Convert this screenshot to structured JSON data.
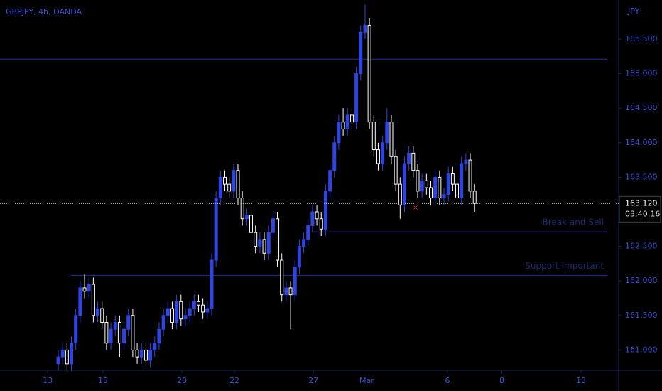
{
  "chart_data": {
    "type": "candlestick",
    "title": "GBPJPY, 4h, OANDA",
    "currency": "JPY",
    "up_color": "#2f45e0",
    "down_color": "#ffffff",
    "open": [
      160.8,
      160.9,
      161.0,
      160.8,
      161.1,
      161.5,
      161.9,
      161.85,
      161.95,
      161.5,
      161.6,
      161.4,
      161.1,
      161.3,
      161.4,
      161.1,
      161.3,
      161.5,
      161.0,
      160.9,
      161.0,
      160.85,
      161.0,
      161.1,
      161.3,
      161.5,
      161.6,
      161.4,
      161.7,
      161.45,
      161.5,
      161.6,
      161.7,
      161.65,
      161.55,
      161.6,
      162.3,
      163.2,
      163.5,
      163.4,
      163.3,
      163.6,
      163.2,
      162.9,
      162.95,
      162.7,
      162.5,
      162.6,
      162.4,
      162.7,
      162.9,
      162.3,
      161.8,
      161.9,
      161.8,
      162.2,
      162.5,
      162.6,
      162.8,
      163.0,
      162.9,
      162.75,
      163.3,
      163.6,
      164.0,
      164.3,
      164.2,
      164.4,
      164.3,
      165.0,
      165.6,
      165.7,
      164.3,
      163.9,
      163.7,
      164.0,
      164.3,
      163.8,
      163.4,
      163.1,
      163.7,
      163.85,
      163.6,
      163.3,
      163.45,
      163.35,
      163.2,
      163.5,
      163.2,
      163.25,
      163.55,
      163.4,
      163.2,
      163.7,
      163.75,
      163.3
    ],
    "high": [
      161.0,
      161.1,
      161.1,
      161.2,
      161.6,
      162.0,
      162.1,
      162.05,
      162.05,
      161.7,
      161.7,
      161.5,
      161.4,
      161.5,
      161.5,
      161.4,
      161.6,
      161.6,
      161.1,
      161.1,
      161.1,
      161.1,
      161.2,
      161.4,
      161.6,
      161.7,
      161.7,
      161.8,
      161.8,
      161.6,
      161.7,
      161.8,
      161.8,
      161.75,
      161.7,
      162.4,
      163.3,
      163.6,
      163.6,
      163.5,
      163.7,
      163.7,
      163.3,
      163.05,
      163.05,
      162.8,
      162.7,
      162.7,
      162.8,
      163.0,
      163.0,
      162.4,
      162.0,
      162.0,
      162.3,
      162.6,
      162.7,
      162.9,
      163.1,
      163.1,
      163.0,
      163.4,
      163.7,
      164.1,
      164.4,
      164.5,
      164.5,
      164.5,
      165.1,
      165.7,
      166.0,
      165.8,
      164.4,
      164.0,
      164.1,
      164.5,
      164.4,
      163.9,
      163.5,
      163.8,
      163.95,
      163.95,
      163.7,
      163.55,
      163.55,
      163.45,
      163.6,
      163.6,
      163.35,
      163.65,
      163.65,
      163.5,
      163.8,
      163.85,
      163.85,
      163.4
    ],
    "low": [
      160.7,
      160.8,
      160.7,
      160.7,
      161.0,
      161.4,
      161.75,
      161.75,
      161.4,
      161.4,
      161.3,
      161.0,
      161.0,
      161.2,
      160.9,
      161.0,
      161.2,
      160.9,
      160.8,
      160.8,
      160.75,
      160.75,
      160.9,
      161.0,
      161.2,
      161.4,
      161.3,
      161.3,
      161.35,
      161.35,
      161.4,
      161.5,
      161.55,
      161.45,
      161.45,
      161.5,
      162.2,
      163.1,
      163.3,
      163.2,
      163.2,
      163.1,
      162.8,
      162.8,
      162.6,
      162.4,
      162.4,
      162.3,
      162.3,
      162.6,
      162.2,
      161.7,
      161.7,
      161.3,
      161.7,
      162.1,
      162.4,
      162.5,
      162.7,
      162.8,
      162.65,
      162.65,
      163.2,
      163.5,
      163.9,
      164.1,
      164.1,
      164.2,
      164.2,
      164.9,
      165.5,
      164.2,
      163.8,
      163.6,
      163.6,
      163.9,
      163.7,
      163.3,
      162.9,
      163.0,
      163.6,
      163.5,
      163.2,
      163.2,
      163.25,
      163.1,
      163.1,
      163.1,
      163.1,
      163.15,
      163.3,
      163.1,
      163.1,
      163.6,
      163.2,
      163.0
    ],
    "close": [
      160.9,
      161.0,
      160.8,
      161.1,
      161.5,
      161.9,
      161.85,
      161.95,
      161.5,
      161.6,
      161.4,
      161.1,
      161.3,
      161.4,
      161.1,
      161.3,
      161.5,
      161.0,
      160.9,
      161.0,
      160.85,
      161.0,
      161.1,
      161.3,
      161.5,
      161.6,
      161.4,
      161.7,
      161.45,
      161.5,
      161.6,
      161.7,
      161.65,
      161.55,
      161.6,
      162.3,
      163.2,
      163.5,
      163.4,
      163.3,
      163.6,
      163.2,
      162.9,
      162.95,
      162.7,
      162.5,
      162.6,
      162.4,
      162.7,
      162.9,
      162.3,
      161.8,
      161.9,
      161.8,
      162.2,
      162.5,
      162.6,
      162.8,
      163.0,
      162.9,
      162.75,
      163.3,
      163.6,
      164.0,
      164.3,
      164.2,
      164.4,
      164.3,
      165.0,
      165.6,
      165.7,
      164.3,
      163.9,
      163.7,
      164.0,
      164.3,
      163.8,
      163.4,
      163.1,
      163.7,
      163.85,
      163.6,
      163.3,
      163.45,
      163.35,
      163.2,
      163.5,
      163.2,
      163.25,
      163.55,
      163.4,
      163.2,
      163.7,
      163.75,
      163.3,
      163.12
    ],
    "xlim": [
      -13.29,
      127.7
    ],
    "xticks": [
      {
        "value": -2.4,
        "label": "13"
      },
      {
        "value": 10.2,
        "label": "15"
      },
      {
        "value": 28.2,
        "label": "20"
      },
      {
        "value": 40.2,
        "label": "22"
      },
      {
        "value": 58.2,
        "label": "27"
      },
      {
        "value": 70.4,
        "label": "Mar"
      },
      {
        "value": 88.8,
        "label": "6"
      },
      {
        "value": 101.2,
        "label": "8"
      },
      {
        "value": 119.3,
        "label": "13"
      }
    ],
    "ylim": [
      160.716,
      166.066
    ],
    "yticks": [
      {
        "value": 161,
        "label": "161.000"
      },
      {
        "value": 161.5,
        "label": "161.500"
      },
      {
        "value": 162,
        "label": "162.000"
      },
      {
        "value": 162.5,
        "label": "162.500"
      },
      {
        "value": 163.5,
        "label": "163.500"
      },
      {
        "value": 164,
        "label": "164.000"
      },
      {
        "value": 164.5,
        "label": "164.500"
      },
      {
        "value": 165,
        "label": "165.000"
      },
      {
        "value": 165.5,
        "label": "165.500"
      }
    ],
    "levels": [
      {
        "value": 165.21
      },
      {
        "value": 162.71,
        "x_start": 58,
        "label": "Break and Sell"
      },
      {
        "value": 162.08,
        "x_start": 2.9,
        "label": "Support Important"
      }
    ],
    "last_price": {
      "value": 163.12,
      "label": "163.120",
      "countdown": "03:40:16"
    },
    "marker": {
      "x": 81.5,
      "y": 163.06,
      "label": "×"
    }
  }
}
